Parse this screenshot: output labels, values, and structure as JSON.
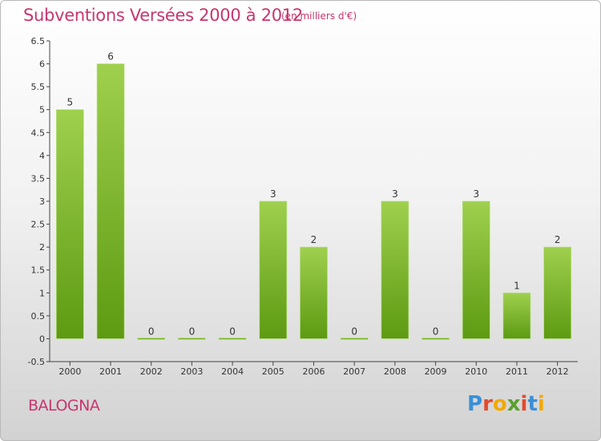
{
  "header": {
    "title": "Subventions Versées 2000 à 2012",
    "subtitle": "(en milliers d'€)"
  },
  "footer": {
    "commune": "BALOGNA",
    "logo_text": "Proxiti",
    "logo_colors": [
      "#3b8fd6",
      "#e24a2e",
      "#f2a900",
      "#5aa02c",
      "#e24a2e",
      "#3b8fd6",
      "#f2a900"
    ]
  },
  "colors": {
    "accent": "#c7366f",
    "bar_top": "#9fd04e",
    "bar_bottom": "#5d9a12"
  },
  "chart_data": {
    "type": "bar",
    "categories": [
      "2000",
      "2001",
      "2002",
      "2003",
      "2004",
      "2005",
      "2006",
      "2007",
      "2008",
      "2009",
      "2010",
      "2011",
      "2012"
    ],
    "values": [
      5,
      6,
      0,
      0,
      0,
      3,
      2,
      0,
      3,
      0,
      3,
      1,
      2
    ],
    "data_labels": [
      "5",
      "6",
      "0",
      "0",
      "0",
      "3",
      "2",
      "0",
      "3",
      "0",
      "3",
      "1",
      "2"
    ],
    "title": "Subventions Versées 2000 à 2012",
    "ylim": [
      -0.5,
      6.5
    ],
    "yticks": [
      -0.5,
      0,
      0.5,
      1,
      1.5,
      2,
      2.5,
      3,
      3.5,
      4,
      4.5,
      5,
      5.5,
      6,
      6.5
    ],
    "ytick_labels": [
      "-0.5",
      "0",
      "0.5",
      "1",
      "1.5",
      "2",
      "2.5",
      "3",
      "3.5",
      "4",
      "4.5",
      "5",
      "5.5",
      "6",
      "6.5"
    ],
    "grid": false
  }
}
